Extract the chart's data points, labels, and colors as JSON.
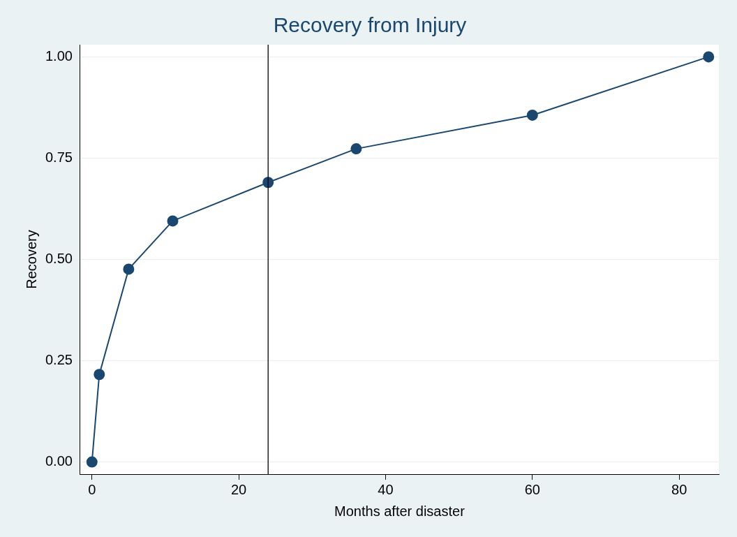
{
  "chart_data": {
    "type": "line",
    "title": "Recovery from Injury",
    "xlabel": "Months after disaster",
    "ylabel": "Recovery",
    "x": [
      0,
      1,
      5,
      11,
      24,
      36,
      60,
      84
    ],
    "series": [
      {
        "color": "#1a476f",
        "values": [
          0,
          0.216,
          0.476,
          0.595,
          0.69,
          0.773,
          0.856,
          1.0
        ]
      }
    ],
    "xlim": [
      -1.6,
      85.4
    ],
    "xticks": [
      0,
      20,
      40,
      60,
      80
    ],
    "ylim": [
      -0.03,
      1.03
    ],
    "yticks": [
      {
        "value": 0,
        "label": "0.00"
      },
      {
        "value": 0.25,
        "label": "0.25"
      },
      {
        "value": 0.5,
        "label": "0.50"
      },
      {
        "value": 0.75,
        "label": "0.75"
      },
      {
        "value": 1,
        "label": "1.00"
      }
    ],
    "ref_lines": [
      {
        "axis": "x",
        "value": 24,
        "color": "#000000",
        "line_style": "solid"
      }
    ],
    "grid": "y",
    "legend": false,
    "marker": "circle",
    "line_style": "solid"
  }
}
